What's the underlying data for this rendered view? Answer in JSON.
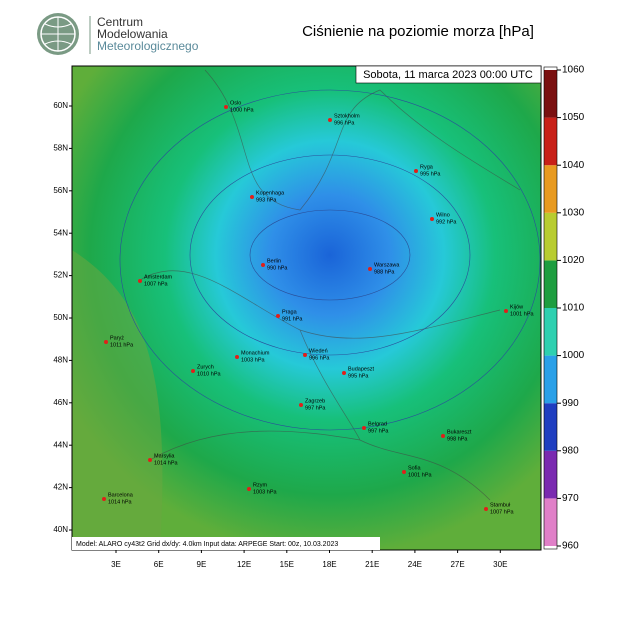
{
  "header": {
    "org_lines": [
      "Centrum",
      "Modelowania",
      "Meteorologicznego"
    ],
    "title": "Ciśnienie na poziomie morza [hPa]"
  },
  "map": {
    "date": "Sobota, 11 marca 2023 00:00 UTC",
    "footer": "Model: ALARO cy43t2  Grid dx/dy: 4.0km  Input data: ARPEGE  Start: 00z, 10.03.2023",
    "lat_labels": [
      "60N",
      "58N",
      "56N",
      "54N",
      "52N",
      "50N",
      "48N",
      "46N",
      "44N",
      "42N",
      "40N"
    ],
    "lon_labels": [
      "3E",
      "6E",
      "9E",
      "12E",
      "15E",
      "18E",
      "21E",
      "24E",
      "27E",
      "30E"
    ],
    "cities": [
      {
        "name": "Oslo",
        "pressure": "1000 hPa"
      },
      {
        "name": "Sztokholm",
        "pressure": "996 hPa"
      },
      {
        "name": "Ryga",
        "pressure": "995 hPa"
      },
      {
        "name": "Kopenhaga",
        "pressure": "993 hPa"
      },
      {
        "name": "Wilno",
        "pressure": "992 hPa"
      },
      {
        "name": "Berlin",
        "pressure": "990 hPa"
      },
      {
        "name": "Warszawa",
        "pressure": "988 hPa"
      },
      {
        "name": "Amsterdam",
        "pressure": "1007 hPa"
      },
      {
        "name": "Kijów",
        "pressure": "1001 hPa"
      },
      {
        "name": "Praga",
        "pressure": "991 hPa"
      },
      {
        "name": "Paryż",
        "pressure": "1011 hPa"
      },
      {
        "name": "Monachium",
        "pressure": "1003 hPa"
      },
      {
        "name": "Wiedeń",
        "pressure": "996 hPa"
      },
      {
        "name": "Zurych",
        "pressure": "1010 hPa"
      },
      {
        "name": "Budapeszt",
        "pressure": "995 hPa"
      },
      {
        "name": "Zagrzeb",
        "pressure": "997 hPa"
      },
      {
        "name": "Belgrad",
        "pressure": "997 hPa"
      },
      {
        "name": "Bukareszt",
        "pressure": "998 hPa"
      },
      {
        "name": "Marsylia",
        "pressure": "1014 hPa"
      },
      {
        "name": "Sofia",
        "pressure": "1001 hPa"
      },
      {
        "name": "Rzym",
        "pressure": "1003 hPa"
      },
      {
        "name": "Barcelona",
        "pressure": "1014 hPa"
      },
      {
        "name": "Stambuł",
        "pressure": "1007 hPa"
      }
    ]
  },
  "colorbar": {
    "lim": [
      960,
      1060
    ],
    "ticks": [
      960,
      970,
      980,
      990,
      1000,
      1010,
      1020,
      1030,
      1040,
      1050,
      1060
    ]
  }
}
